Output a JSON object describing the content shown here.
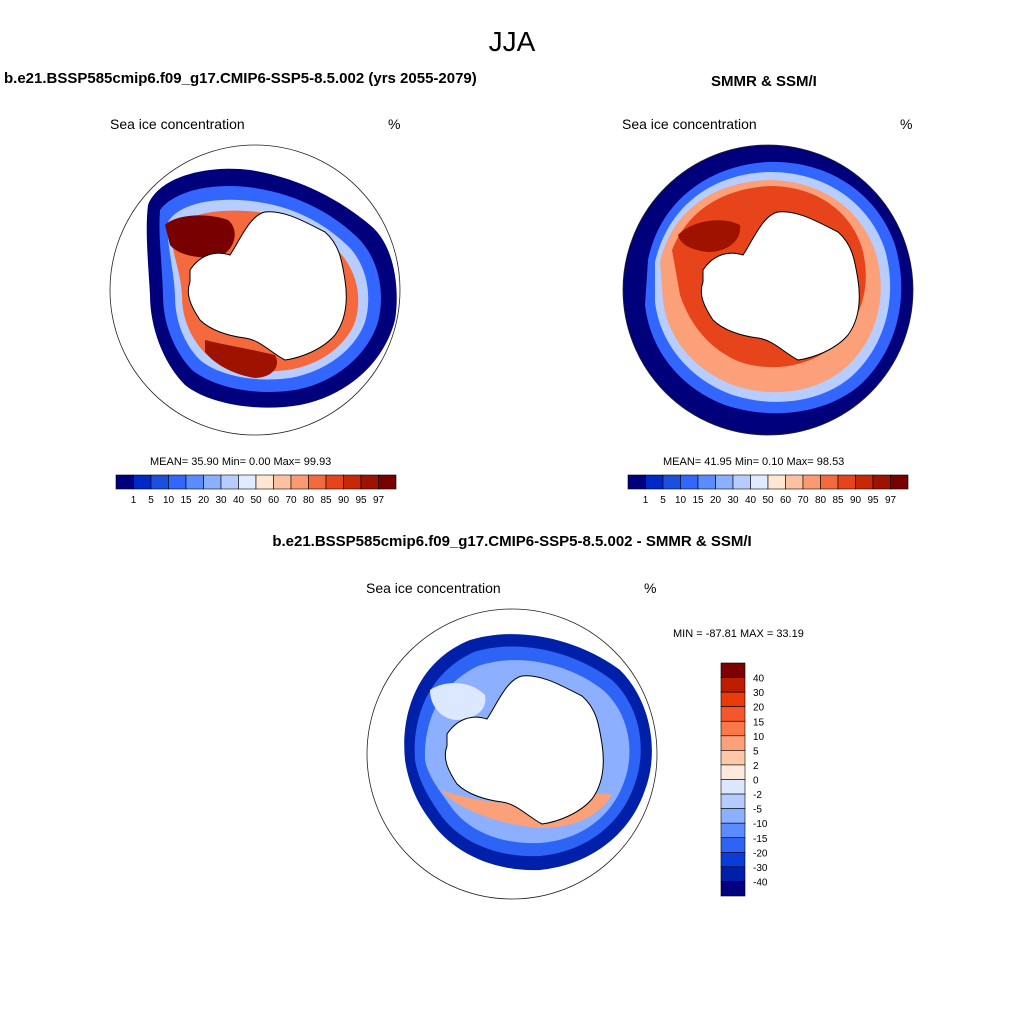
{
  "season": "JJA",
  "panels": [
    {
      "title": "b.e21.BSSP585cmip6.f09_g17.CMIP6-SSP5-8.5.002 (yrs 2055-2079)",
      "left_label": "Sea ice concentration",
      "right_label": "%",
      "stats": "MEAN=  35.90  Min=   0.00  Max=  99.93"
    },
    {
      "title": "SMMR & SSM/I",
      "left_label": "Sea ice concentration",
      "right_label": "%",
      "stats": "MEAN=  41.95  Min=   0.10  Max=  98.53"
    },
    {
      "title": "b.e21.BSSP585cmip6.f09_g17.CMIP6-SSP5-8.5.002 - SMMR & SSM/I",
      "left_label": "Sea ice concentration",
      "right_label": "%",
      "stats": "MIN = -87.81 MAX =  33.19"
    }
  ],
  "concentration_colorbar": {
    "labels": [
      "1",
      "5",
      "10",
      "15",
      "20",
      "30",
      "40",
      "50",
      "60",
      "70",
      "80",
      "85",
      "90",
      "95",
      "97"
    ],
    "colors": [
      "#00007d",
      "#0028c8",
      "#1a4fe0",
      "#3366ff",
      "#5a8cff",
      "#8ab0ff",
      "#b7cdff",
      "#e1ebff",
      "#fde6d2",
      "#fcc2a0",
      "#f99a72",
      "#f46a3e",
      "#e8441c",
      "#c82808",
      "#a01200",
      "#780000"
    ]
  },
  "difference_colorbar": {
    "labels": [
      "40",
      "30",
      "20",
      "15",
      "10",
      "5",
      "2",
      "0",
      "-2",
      "-5",
      "-10",
      "-15",
      "-20",
      "-30",
      "-40"
    ],
    "colors": [
      "#7d0000",
      "#be1e00",
      "#e83a0c",
      "#f4582a",
      "#f8784a",
      "#fba078",
      "#fdc8a8",
      "#feeadc",
      "#dce8ff",
      "#b4ccff",
      "#8cb0ff",
      "#5a8cff",
      "#2d64f5",
      "#0a3cd7",
      "#0020aa",
      "#000080"
    ]
  },
  "map_colors": {
    "coast": "#000000",
    "circle": "#222222"
  }
}
